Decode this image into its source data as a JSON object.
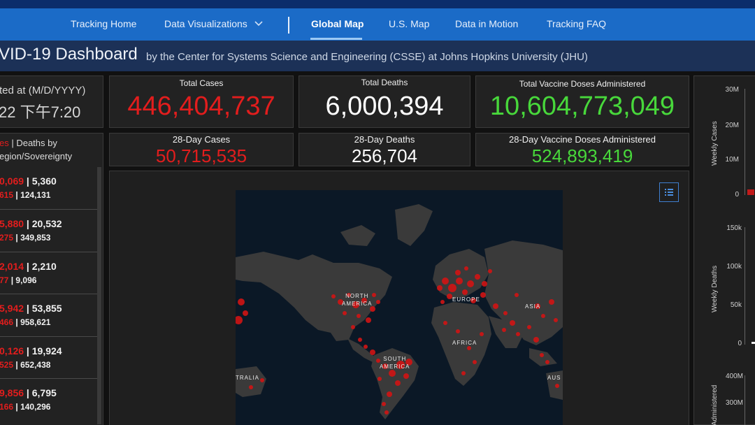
{
  "nav": {
    "items": [
      "Tracking Home",
      "Data Visualizations",
      "Global Map",
      "U.S. Map",
      "Data in Motion",
      "Tracking FAQ"
    ],
    "active": "Global Map"
  },
  "header": {
    "title": "VID-19 Dashboard",
    "subtitle": "by the Center for Systems Science and Engineering (CSSE) at Johns Hopkins University (JHU)"
  },
  "updated": {
    "label": "ted at (M/D/YYYY)",
    "value": "22 下午7:20"
  },
  "cards": {
    "total_cases": {
      "label": "Total Cases",
      "value": "446,404,737"
    },
    "total_deaths": {
      "label": "Total Deaths",
      "value": "6,000,394"
    },
    "total_vaccine": {
      "label": "Total Vaccine Doses Administered",
      "value": "10,604,773,049"
    },
    "cases_28": {
      "label": "28-Day Cases",
      "value": "50,715,535"
    },
    "deaths_28": {
      "label": "28-Day Deaths",
      "value": "256,704"
    },
    "vaccine_28": {
      "label": "28-Day Vaccine Doses Administered",
      "value": "524,893,419"
    }
  },
  "list": {
    "head_red": "es",
    "head_rest": " | Deaths by",
    "head_line2": "egion/Sovereignty",
    "rows": [
      {
        "a1": "0,069",
        "b1": "5,360",
        "a2": "615",
        "b2": "124,131"
      },
      {
        "a1": "5,880",
        "b1": "20,532",
        "a2": "275",
        "b2": "349,853"
      },
      {
        "a1": "2,014",
        "b1": "2,210",
        "a2": "77",
        "b2": "9,096"
      },
      {
        "a1": "5,942",
        "b1": "53,855",
        "a2": "466",
        "b2": "958,621"
      },
      {
        "a1": "0,126",
        "b1": "19,924",
        "a2": "525",
        "b2": "652,438"
      },
      {
        "a1": "9,856",
        "b1": "6,795",
        "a2": "166",
        "b2": "140,296"
      }
    ]
  },
  "map": {
    "labels": {
      "north_america": [
        "NORTH",
        "AMERICA"
      ],
      "south_america": [
        "SOUTH",
        "AMERICA"
      ],
      "europe": "EUROPE",
      "asia": "ASIA",
      "africa": "AFRICA",
      "australia_left": "TRALIA",
      "australia_right": "AUS"
    },
    "colors": {
      "land": "#3a3a3a",
      "ocean": "#0b1826",
      "dot": "#d11414"
    },
    "legend_icon": "list-icon"
  },
  "right_charts": [
    {
      "axis_title": "Weekly Cases",
      "ticks": [
        "30M",
        "20M",
        "10M",
        "0"
      ]
    },
    {
      "axis_title": "Weekly Deaths",
      "ticks": [
        "150k",
        "100k",
        "50k",
        "0"
      ]
    },
    {
      "axis_title": "Administered",
      "ticks": [
        "400M",
        "300M"
      ]
    }
  ]
}
